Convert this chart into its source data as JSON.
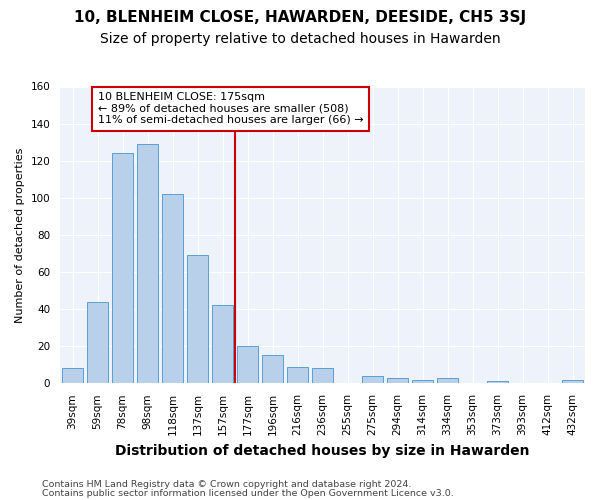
{
  "title": "10, BLENHEIM CLOSE, HAWARDEN, DEESIDE, CH5 3SJ",
  "subtitle": "Size of property relative to detached houses in Hawarden",
  "xlabel": "Distribution of detached houses by size in Hawarden",
  "ylabel": "Number of detached properties",
  "categories": [
    "39sqm",
    "59sqm",
    "78sqm",
    "98sqm",
    "118sqm",
    "137sqm",
    "157sqm",
    "177sqm",
    "196sqm",
    "216sqm",
    "236sqm",
    "255sqm",
    "275sqm",
    "294sqm",
    "314sqm",
    "334sqm",
    "353sqm",
    "373sqm",
    "393sqm",
    "412sqm",
    "432sqm"
  ],
  "values": [
    8,
    44,
    124,
    129,
    102,
    69,
    42,
    20,
    15,
    9,
    8,
    0,
    4,
    3,
    2,
    3,
    0,
    1,
    0,
    0,
    2
  ],
  "bar_color": "#b8d0ea",
  "bar_edge_color": "#5a9fd4",
  "vline_position": 6.5,
  "vline_color": "#cc0000",
  "annotation_line1": "10 BLENHEIM CLOSE: 175sqm",
  "annotation_line2": "← 89% of detached houses are smaller (508)",
  "annotation_line3": "11% of semi-detached houses are larger (66) →",
  "annotation_box_facecolor": "#ffffff",
  "annotation_box_edgecolor": "#cc0000",
  "ylim": [
    0,
    160
  ],
  "yticks": [
    0,
    20,
    40,
    60,
    80,
    100,
    120,
    140,
    160
  ],
  "footer1": "Contains HM Land Registry data © Crown copyright and database right 2024.",
  "footer2": "Contains public sector information licensed under the Open Government Licence v3.0.",
  "bg_color": "#eef2fa",
  "grid_color": "#ffffff",
  "title_fontsize": 11,
  "subtitle_fontsize": 10,
  "ylabel_fontsize": 8,
  "xlabel_fontsize": 10,
  "tick_fontsize": 7.5,
  "annotation_fontsize": 8,
  "footer_fontsize": 6.8
}
